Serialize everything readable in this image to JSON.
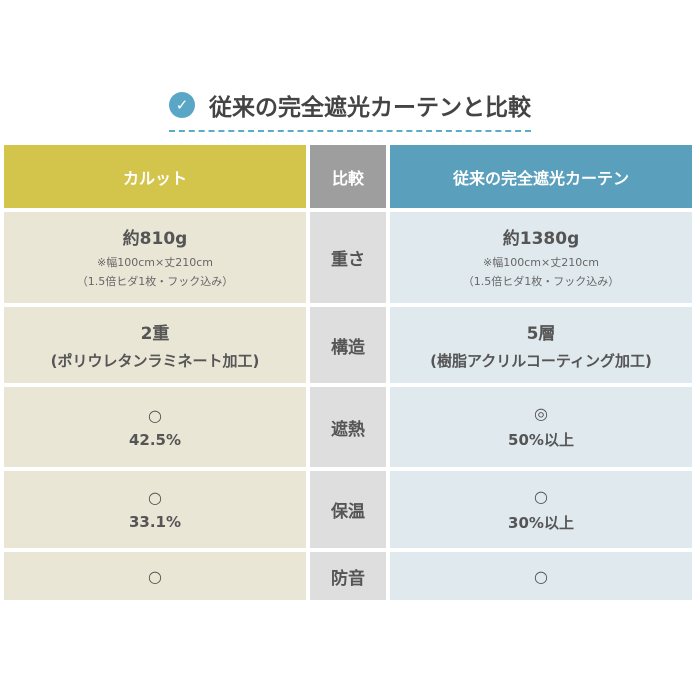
{
  "title": "従来の完全遮光カーテンと比較",
  "icon": "check-circle-icon",
  "headers": [
    "カルット",
    "比較",
    "従来の完全遮光カーテン"
  ],
  "colors": {
    "left_header": "#d3c44b",
    "mid_header": "#9e9e9e",
    "right_header": "#5a9fbb"
  },
  "rows": [
    {
      "label": "重さ",
      "left": {
        "main": "約810g",
        "note1": "※幅100cm×丈210cm",
        "note2": "（1.5倍ヒダ1枚・フック込み）"
      },
      "right": {
        "main": "約1380g",
        "note1": "※幅100cm×丈210cm",
        "note2": "（1.5倍ヒダ1枚・フック込み）"
      }
    },
    {
      "label": "構造",
      "left": {
        "main": "2重",
        "sub": "(ポリウレタンラミネート加工)"
      },
      "right": {
        "main": "5層",
        "sub": "(樹脂アクリルコーティング加工)"
      }
    },
    {
      "label": "遮熱",
      "left": {
        "symbol": "○",
        "value": "42.5%"
      },
      "right": {
        "symbol": "◎",
        "value": "50%以上"
      }
    },
    {
      "label": "保温",
      "left": {
        "symbol": "○",
        "value": "33.1%"
      },
      "right": {
        "symbol": "○",
        "value": "30%以上"
      }
    },
    {
      "label": "防音",
      "left": {
        "symbol": "○"
      },
      "right": {
        "symbol": "○"
      }
    }
  ]
}
